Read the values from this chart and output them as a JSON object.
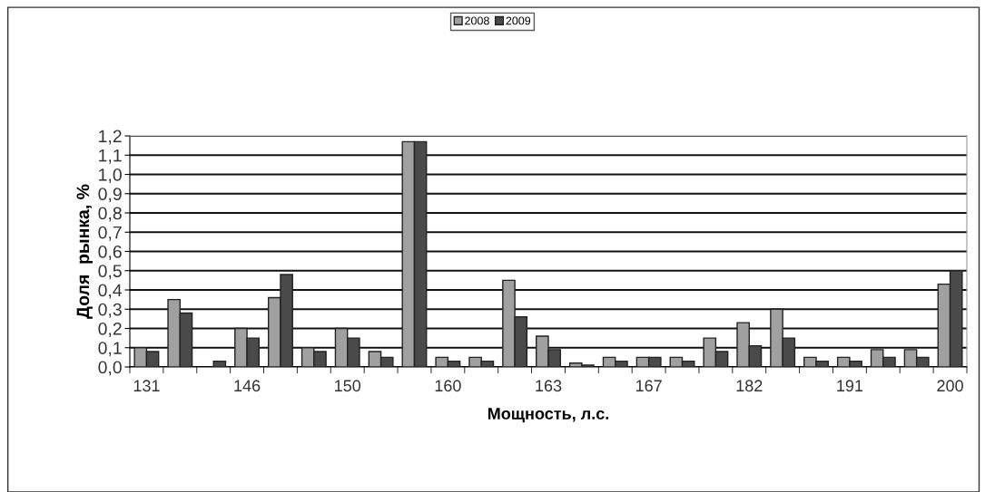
{
  "chart_data": {
    "type": "bar",
    "xlabel": "Мощность, л.с.",
    "ylabel": "Доля  рынка, %",
    "categories": [
      "131",
      null,
      null,
      "146",
      null,
      null,
      "150",
      null,
      null,
      "160",
      null,
      null,
      "163",
      null,
      null,
      "167",
      null,
      null,
      "182",
      null,
      null,
      "191",
      null,
      null,
      "200"
    ],
    "series": [
      {
        "name": "2008",
        "color": "#a0a0a0",
        "values": [
          0.1,
          0.35,
          null,
          0.2,
          0.36,
          0.1,
          0.2,
          0.08,
          1.17,
          0.05,
          0.05,
          0.45,
          0.16,
          0.02,
          0.05,
          0.05,
          0.05,
          0.15,
          0.23,
          0.3,
          0.05,
          0.05,
          0.09,
          0.09,
          0.43
        ]
      },
      {
        "name": "2009",
        "color": "#4a4a4a",
        "values": [
          0.08,
          0.28,
          0.03,
          0.15,
          0.48,
          0.08,
          0.15,
          0.05,
          1.17,
          0.03,
          0.03,
          0.26,
          0.09,
          0.01,
          0.03,
          0.05,
          0.03,
          0.08,
          0.11,
          0.15,
          0.03,
          0.03,
          0.05,
          0.05,
          0.5
        ]
      }
    ],
    "ylim": [
      0,
      1.2
    ],
    "yticks": [
      {
        "value": 0,
        "label": "0,0"
      },
      {
        "value": 0.1,
        "label": "0,1"
      },
      {
        "value": 0.2,
        "label": "0,2"
      },
      {
        "value": 0.3,
        "label": "0,3"
      },
      {
        "value": 0.4,
        "label": "0,4"
      },
      {
        "value": 0.5,
        "label": "0,5"
      },
      {
        "value": 0.6,
        "label": "0,6"
      },
      {
        "value": 0.7,
        "label": "0,7"
      },
      {
        "value": 0.8,
        "label": "0,8"
      },
      {
        "value": 0.9,
        "label": "0,9"
      },
      {
        "value": 1.0,
        "label": "1,0"
      },
      {
        "value": 1.1,
        "label": "1,1"
      },
      {
        "value": 1.2,
        "label": "1,2"
      }
    ],
    "grid": "y",
    "legend": "top"
  }
}
